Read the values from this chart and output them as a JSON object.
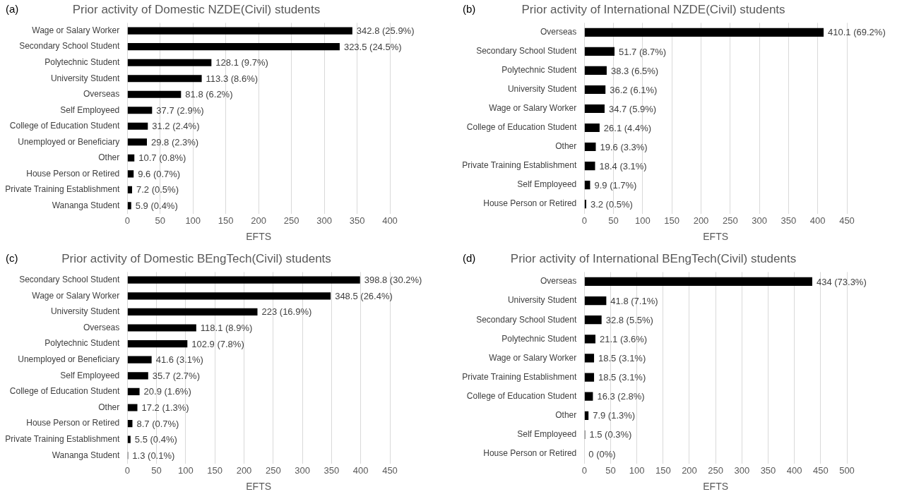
{
  "chart_data": [
    {
      "type": "bar",
      "orientation": "horizontal",
      "title": "Prior activity of Domestic NZDE(Civil) students",
      "xlabel": "EFTS",
      "annotations": [
        "(a)"
      ],
      "grid": "x",
      "legend": false,
      "categories": [
        "Wage or Salary Worker",
        "Secondary School Student",
        "Polytechnic Student",
        "University Student",
        "Overseas",
        "Self Employeed",
        "College of Education Student",
        "Unemployed or Beneficiary",
        "Other",
        "House Person or Retired",
        "Private Training Establishment",
        "Wananga Student"
      ],
      "values": [
        342.8,
        323.5,
        128.1,
        113.3,
        81.8,
        37.7,
        31.2,
        29.8,
        10.7,
        9.6,
        7.2,
        5.9
      ],
      "value_labels": [
        "342.8 (25.9%)",
        "323.5 (24.5%)",
        "128.1 (9.7%)",
        "113.3 (8.6%)",
        "81.8 (6.2%)",
        "37.7 (2.9%)",
        "31.2 (2.4%)",
        "29.8 (2.3%)",
        "10.7 (0.8%)",
        "9.6 (0.7%)",
        "7.2 (0.5%)",
        "5.9 (0.4%)"
      ],
      "color": "#000000",
      "xlim": [
        0,
        400
      ],
      "xticks": [
        0,
        50,
        100,
        150,
        200,
        250,
        300,
        350,
        400
      ]
    },
    {
      "type": "bar",
      "orientation": "horizontal",
      "title": "Prior activity of International NZDE(Civil) students",
      "xlabel": "EFTS",
      "annotations": [
        "(b)"
      ],
      "grid": "x",
      "legend": false,
      "categories": [
        "Overseas",
        "Secondary School Student",
        "Polytechnic Student",
        "University Student",
        "Wage or Salary Worker",
        "College of Education Student",
        "Other",
        "Private Training Establishment",
        "Self Employeed",
        "House Person or Retired"
      ],
      "values": [
        410.1,
        51.7,
        38.3,
        36.2,
        34.7,
        26.1,
        19.6,
        18.4,
        9.9,
        3.2
      ],
      "value_labels": [
        "410.1 (69.2%)",
        "51.7 (8.7%)",
        "38.3 (6.5%)",
        "36.2 (6.1%)",
        "34.7 (5.9%)",
        "26.1 (4.4%)",
        "19.6 (3.3%)",
        "18.4 (3.1%)",
        "9.9 (1.7%)",
        "3.2 (0.5%)"
      ],
      "color": "#000000",
      "xlim": [
        0,
        450
      ],
      "xticks": [
        0,
        50,
        100,
        150,
        200,
        250,
        300,
        350,
        400,
        450
      ]
    },
    {
      "type": "bar",
      "orientation": "horizontal",
      "title": "Prior activity of Domestic BEngTech(Civil) students",
      "xlabel": "EFTS",
      "annotations": [
        "(c)"
      ],
      "grid": "x",
      "legend": false,
      "categories": [
        "Secondary School Student",
        "Wage or Salary Worker",
        "University Student",
        "Overseas",
        "Polytechnic Student",
        "Unemployed or Beneficiary",
        "Self Employeed",
        "College of Education Student",
        "Other",
        "House Person or Retired",
        "Private Training Establishment",
        "Wananga Student"
      ],
      "values": [
        398.8,
        348.5,
        223,
        118.1,
        102.9,
        41.6,
        35.7,
        20.9,
        17.2,
        8.7,
        5.5,
        1.3
      ],
      "value_labels": [
        "398.8 (30.2%)",
        "348.5 (26.4%)",
        "223 (16.9%)",
        "118.1 (8.9%)",
        "102.9 (7.8%)",
        "41.6 (3.1%)",
        "35.7 (2.7%)",
        "20.9 (1.6%)",
        "17.2 (1.3%)",
        "8.7 (0.7%)",
        "5.5 (0.4%)",
        "1.3 (0.1%)"
      ],
      "color": "#000000",
      "xlim": [
        0,
        450
      ],
      "xticks": [
        0,
        50,
        100,
        150,
        200,
        250,
        300,
        350,
        400,
        450
      ]
    },
    {
      "type": "bar",
      "orientation": "horizontal",
      "title": "Prior activity of International BEngTech(Civil) students",
      "xlabel": "EFTS",
      "annotations": [
        "(d)"
      ],
      "grid": "x",
      "legend": false,
      "categories": [
        "Overseas",
        "University Student",
        "Secondary School Student",
        "Polytechnic Student",
        "Wage or Salary Worker",
        "Private Training Establishment",
        "College of Education Student",
        "Other",
        "Self Employeed",
        "House Person or Retired"
      ],
      "values": [
        434,
        41.8,
        32.8,
        21.1,
        18.5,
        18.5,
        16.3,
        7.9,
        1.5,
        0
      ],
      "value_labels": [
        "434 (73.3%)",
        "41.8 (7.1%)",
        "32.8 (5.5%)",
        "21.1 (3.6%)",
        "18.5 (3.1%)",
        "18.5 (3.1%)",
        "16.3 (2.8%)",
        "7.9 (1.3%)",
        "1.5 (0.3%)",
        "0 (0%)"
      ],
      "color": "#000000",
      "xlim": [
        0,
        500
      ],
      "xticks": [
        0,
        50,
        100,
        150,
        200,
        250,
        300,
        350,
        400,
        450,
        500
      ]
    }
  ]
}
